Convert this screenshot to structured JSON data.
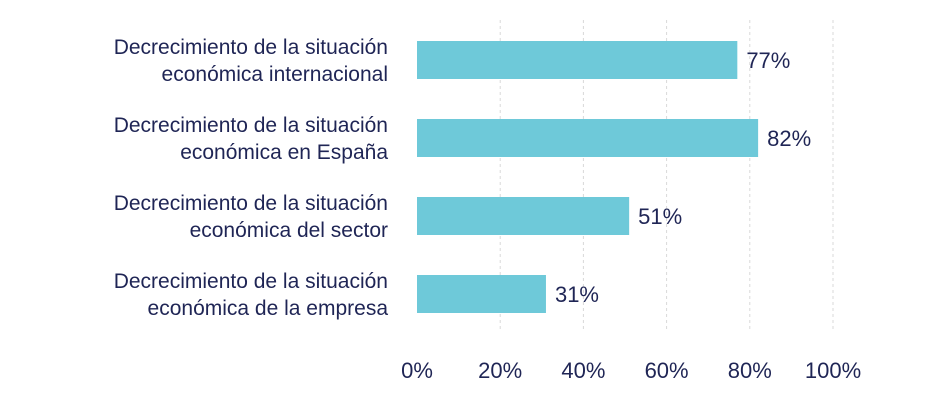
{
  "chart_data": {
    "type": "bar",
    "orientation": "horizontal",
    "categories": [
      [
        "Decrecimiento de la situación",
        "económica internacional"
      ],
      [
        "Decrecimiento de la situación",
        "económica en España"
      ],
      [
        "Decrecimiento de la situación",
        "económica del sector"
      ],
      [
        "Decrecimiento de la situación",
        "económica de la empresa"
      ]
    ],
    "values": [
      77,
      82,
      51,
      31
    ],
    "value_labels": [
      "77%",
      "82%",
      "51%",
      "31%"
    ],
    "x_ticks": [
      0,
      20,
      40,
      60,
      80,
      100
    ],
    "x_tick_labels": [
      "0%",
      "20%",
      "40%",
      "60%",
      "80%",
      "100%"
    ],
    "xlim": [
      0,
      100
    ],
    "grid": true,
    "bar_color": "#6ec9d9",
    "text_color": "#1f2555"
  }
}
